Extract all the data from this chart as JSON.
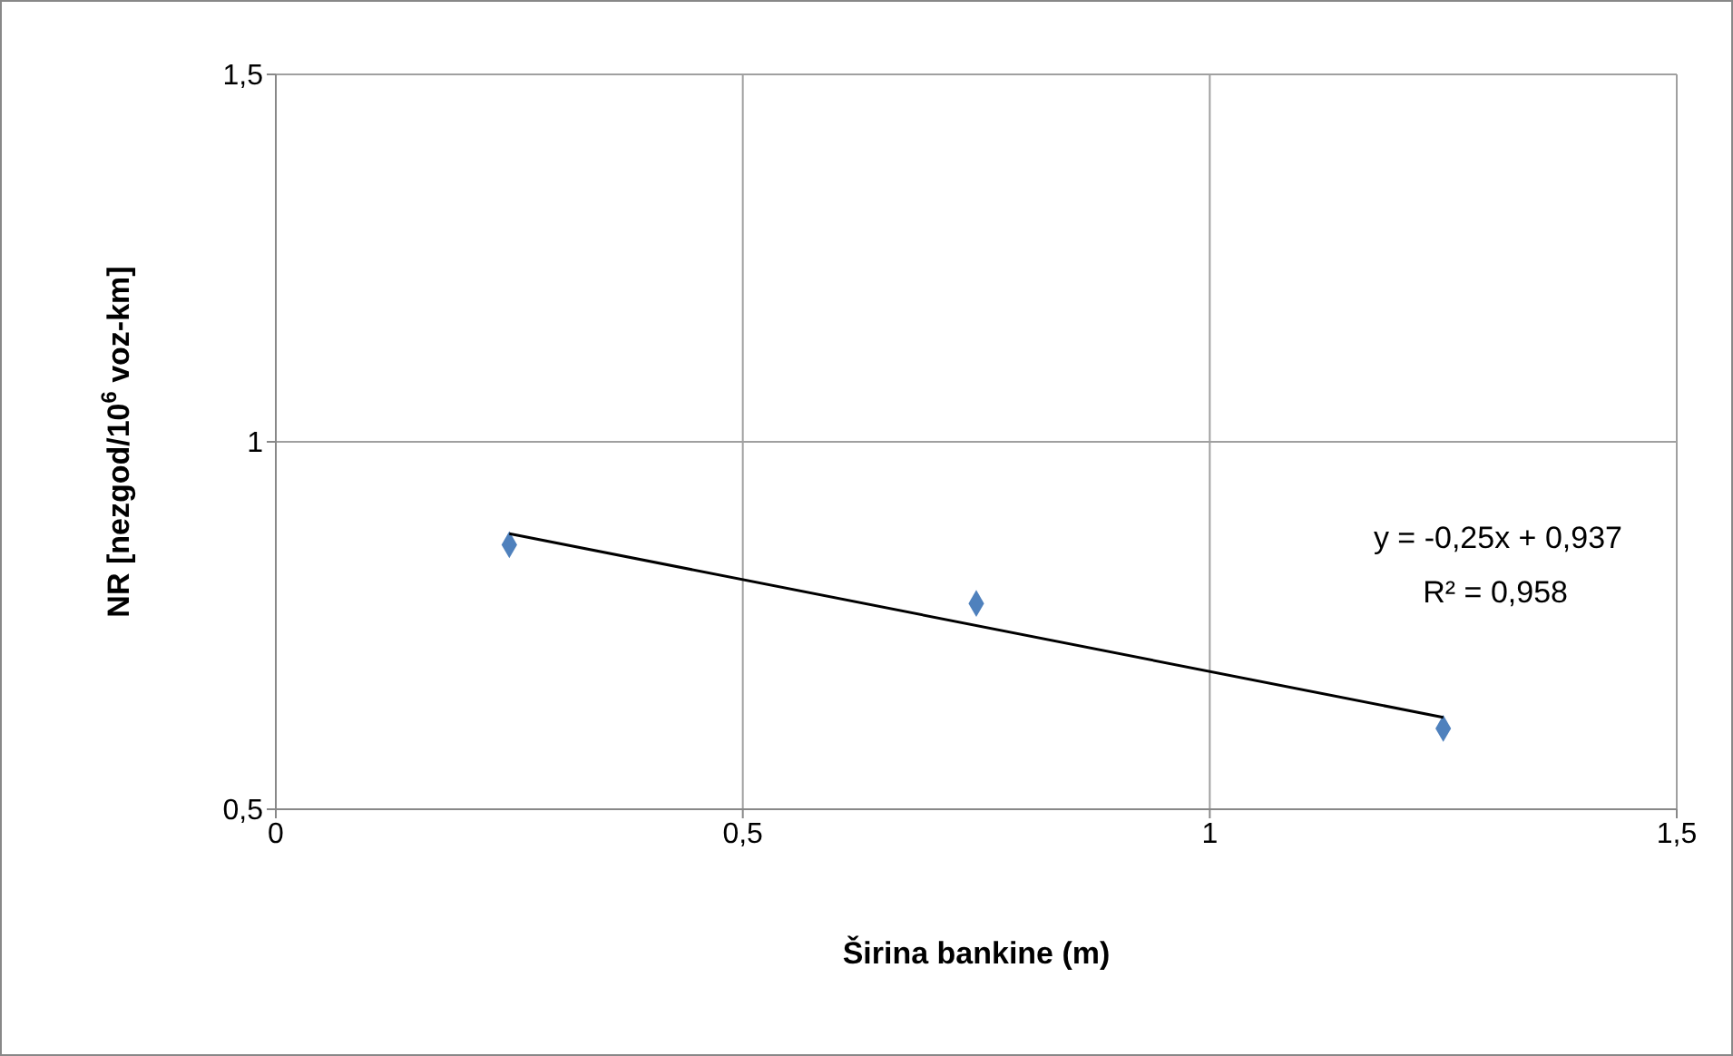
{
  "chart_data": {
    "type": "scatter",
    "xlabel": "Širina bankine (m)",
    "ylabel": "NR [nezgod/10$^{6}$ voz-km]",
    "x": [
      0.25,
      0.75,
      1.25
    ],
    "series": [
      {
        "color": "#4f81bd",
        "values": [
          0.86,
          0.78,
          0.61
        ],
        "marker": "diamond"
      },
      {
        "type": "line",
        "color": "#000000",
        "x": [
          0.25,
          1.25
        ],
        "values": [
          0.875,
          0.625
        ],
        "marker": "none"
      }
    ],
    "xlim": [
      0,
      1.5
    ],
    "ylim": [
      0.5,
      1.5
    ],
    "xticks": [
      0,
      {
        "value": 0.5,
        "label": "0,5"
      },
      1,
      {
        "value": 1.5,
        "label": "1,5"
      }
    ],
    "yticks": [
      {
        "value": 0.5,
        "label": "0,5"
      },
      1,
      {
        "value": 1.5,
        "label": "1,5"
      }
    ],
    "grid": true,
    "annotations": [
      "y = -0,25x + 0,937",
      "R² = 0,958"
    ]
  }
}
